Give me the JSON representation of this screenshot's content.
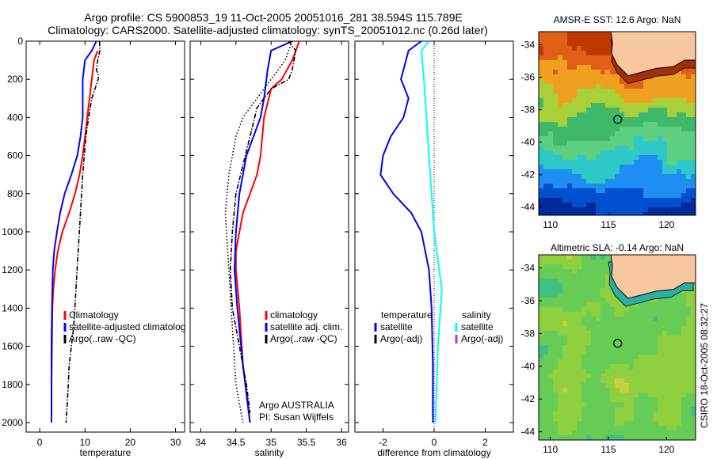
{
  "title": {
    "line1": "Argo profile: CS 5900853_19 11-Oct-2005 20051016_281 38.594S 115.789E",
    "line2": "Climatology: CARS2000. Satellite-adjusted climatology: synTS_20051012.nc (0.26d later)"
  },
  "credit": "CSIRO 18-Oct-2005 08:32:27",
  "chart_data": [
    {
      "type": "line",
      "panel": "temperature",
      "xlabel": "temperature",
      "ylabel": "",
      "xlim": [
        -3,
        32
      ],
      "ylim": [
        2050,
        0
      ],
      "xticks": [
        "0",
        "10",
        "20",
        "30"
      ],
      "yticks": [
        "0",
        "200",
        "400",
        "600",
        "800",
        "1000",
        "1200",
        "1400",
        "1600",
        "1800",
        "2000"
      ],
      "legend": [
        "Climatology",
        "satellite-adjusted climatolog",
        "Argo(..raw -QC)"
      ],
      "series": [
        {
          "name": "Climatology",
          "color": "#ff0000",
          "style": "solid",
          "x": [
            12.8,
            12.0,
            11.5,
            11.0,
            10.5,
            10.0,
            9.5,
            8.8,
            7.8,
            6.5,
            5.0,
            4.0,
            3.4,
            3.0,
            2.8,
            2.7,
            2.6,
            2.6
          ],
          "y": [
            50,
            100,
            200,
            300,
            400,
            500,
            600,
            700,
            800,
            900,
            1000,
            1100,
            1200,
            1300,
            1400,
            1600,
            1800,
            2000
          ]
        },
        {
          "name": "satellite-adjusted climatolog",
          "color": "#0000ff",
          "style": "solid",
          "x": [
            12.5,
            11.5,
            10.0,
            9.5,
            9.5,
            9.5,
            9.0,
            8.3,
            7.0,
            5.5,
            4.5,
            3.8,
            3.2,
            2.9,
            2.7,
            2.6,
            2.6
          ],
          "y": [
            0,
            50,
            100,
            200,
            300,
            400,
            500,
            600,
            700,
            800,
            900,
            1000,
            1100,
            1200,
            1400,
            1600,
            2000
          ]
        },
        {
          "name": "Argo(..raw -QC)",
          "color": "#000000",
          "style": "dashdot",
          "x": [
            13.2,
            13.3,
            12.8,
            12.5,
            13.0,
            12.9,
            11.5,
            10.8,
            10.2,
            9.5,
            9.0,
            8.5,
            8.0,
            7.5,
            7.0,
            6.5,
            6.2,
            5.8
          ],
          "y": [
            0,
            50,
            100,
            150,
            180,
            200,
            300,
            400,
            500,
            700,
            900,
            1100,
            1300,
            1500,
            1600,
            1700,
            1850,
            2000
          ]
        }
      ]
    },
    {
      "type": "line",
      "panel": "salinity",
      "xlabel": "salinity",
      "xlim": [
        33.85,
        36.1
      ],
      "ylim": [
        2050,
        0
      ],
      "xticks": [
        "34",
        "34.5",
        "35",
        "35.5",
        "36"
      ],
      "legend": [
        "climatology",
        "satellite adj. clim.",
        "Argo(..raw -QC)"
      ],
      "annotation": [
        "Argo AUSTRALIA",
        "PI: Susan Wijffels"
      ],
      "series": [
        {
          "name": "climatology",
          "color": "#ff0000",
          "style": "solid",
          "x": [
            35.4,
            35.3,
            35.15,
            35.0,
            34.9,
            34.85,
            34.8,
            34.7,
            34.6,
            34.55,
            34.5,
            34.5,
            34.55,
            34.6,
            34.7
          ],
          "y": [
            0,
            100,
            200,
            250,
            400,
            600,
            700,
            800,
            900,
            1000,
            1100,
            1200,
            1400,
            1700,
            2000
          ]
        },
        {
          "name": "satellite adj. clim.",
          "color": "#0000ff",
          "style": "solid",
          "x": [
            35.3,
            35.0,
            34.95,
            34.9,
            34.85,
            34.75,
            34.65,
            34.55,
            34.5,
            34.48,
            34.52,
            34.6,
            34.7
          ],
          "y": [
            0,
            50,
            150,
            300,
            400,
            500,
            600,
            800,
            1000,
            1200,
            1400,
            1700,
            2000
          ]
        },
        {
          "name": "Argo(..raw -QC)",
          "color": "#000000",
          "style": "dashdot",
          "x": [
            35.25,
            35.35,
            35.3,
            35.25,
            35.0,
            34.8,
            34.7,
            34.6,
            34.5,
            34.45,
            34.42,
            34.45,
            34.55,
            34.65,
            34.7
          ],
          "y": [
            0,
            50,
            150,
            200,
            250,
            350,
            500,
            650,
            800,
            1000,
            1200,
            1400,
            1600,
            1800,
            1950
          ]
        },
        {
          "name": "",
          "color": "#000000",
          "style": "dotted",
          "x": [
            35.3,
            35.2,
            35.0,
            34.8,
            34.6,
            34.5,
            34.4,
            34.35,
            34.4,
            34.45,
            34.5,
            34.6
          ],
          "y": [
            0,
            100,
            200,
            300,
            400,
            500,
            700,
            900,
            1200,
            1500,
            1800,
            2000
          ]
        }
      ]
    },
    {
      "type": "line",
      "panel": "difference",
      "xlabel": "difference from climatology",
      "xlim": [
        -3.1,
        3.1
      ],
      "ylim": [
        2050,
        0
      ],
      "xticks": [
        "-2",
        "0",
        "2"
      ],
      "legend_headers": [
        "temperature",
        "salinity"
      ],
      "legend": [
        "satellite",
        "Argo(-adj)",
        "satellite",
        "Argo(-adj)"
      ],
      "series": [
        {
          "name": "satellite",
          "quantity": "temperature",
          "color": "#0000ff",
          "style": "solid",
          "x": [
            -0.5,
            -1.0,
            -1.3,
            -1.0,
            -1.2,
            -1.7,
            -2.0,
            -2.1,
            -1.6,
            -0.9,
            -0.5,
            -0.2,
            -0.1,
            -0.05,
            -0.05
          ],
          "y": [
            0,
            50,
            200,
            300,
            400,
            500,
            600,
            700,
            800,
            900,
            1000,
            1200,
            1400,
            1700,
            2000
          ]
        },
        {
          "name": "satellite",
          "quantity": "salinity",
          "color": "#00ffff",
          "style": "solid",
          "x": [
            -0.2,
            -0.5,
            -0.4,
            -0.35,
            -0.3,
            -0.25,
            -0.2,
            -0.1,
            0.0,
            0.2,
            0.3,
            0.25,
            0.15,
            0.1,
            0.05
          ],
          "y": [
            0,
            50,
            200,
            300,
            400,
            500,
            600,
            800,
            1000,
            1200,
            1300,
            1400,
            1600,
            1800,
            2000
          ]
        }
      ]
    }
  ],
  "maps": [
    {
      "title": "AMSR-E SST: 12.6 Argo: NaN",
      "lon_ticks": [
        "110",
        "115",
        "120"
      ],
      "lat_ticks": [
        "-34",
        "-36",
        "-38",
        "-40",
        "-42",
        "-44"
      ],
      "marker": {
        "lon": 115.8,
        "lat": -38.6
      },
      "palette": [
        "#002a9a",
        "#0050d0",
        "#1e8ef2",
        "#2fc8c8",
        "#5cd080",
        "#3fb86a",
        "#a8d038",
        "#f0a020",
        "#e06018",
        "#c03800"
      ]
    },
    {
      "title": "Altimetric SLA: -0.14 Argo: NaN",
      "lon_ticks": [
        "110",
        "115",
        "120"
      ],
      "lat_ticks": [
        "-34",
        "-36",
        "-38",
        "-40",
        "-42",
        "-44"
      ],
      "marker": {
        "lon": 115.8,
        "lat": -38.6
      },
      "palette": [
        "#00a0a0",
        "#40c080",
        "#66cc55",
        "#8fd040",
        "#c8d040",
        "#e8b040"
      ]
    }
  ]
}
